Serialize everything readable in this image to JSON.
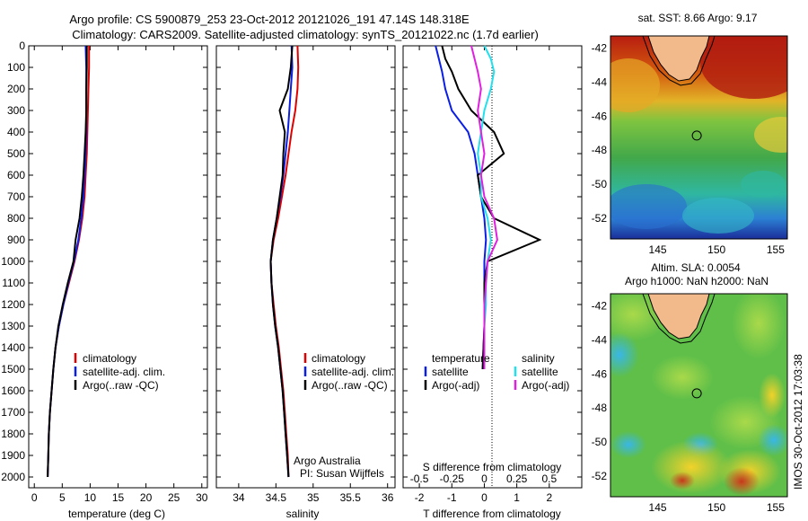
{
  "title": {
    "line1": "Argo profile: CS 5900879_253 23-Oct-2012 20121026_191 47.14S 148.318E",
    "line2": "Climatology: CARS2009. Satellite-adjusted climatology: synTS_20121022.nc (1.7d earlier)"
  },
  "colors": {
    "climatology": "#e00000",
    "satellite": "#0a1ee6",
    "argo": "#000000",
    "sal_satellite": "#22e0ee",
    "sal_argo": "#e020e0"
  },
  "chart_data": [
    {
      "type": "line",
      "name": "temperature-profile",
      "xlabel": "temperature (deg C)",
      "ylabel": "",
      "xlim": [
        -1,
        31
      ],
      "ylim": [
        2050,
        0
      ],
      "xticks": [
        "0",
        "5",
        "10",
        "15",
        "20",
        "25",
        "30"
      ],
      "xtick_values": [
        0,
        5,
        10,
        15,
        20,
        25,
        30
      ],
      "yticks": [
        "0",
        "100",
        "200",
        "300",
        "400",
        "500",
        "600",
        "700",
        "800",
        "900",
        "1000",
        "1100",
        "1200",
        "1300",
        "1400",
        "1500",
        "1600",
        "1700",
        "1800",
        "1900",
        "2000"
      ],
      "ytick_values": [
        0,
        100,
        200,
        300,
        400,
        500,
        600,
        700,
        800,
        900,
        1000,
        1100,
        1200,
        1300,
        1400,
        1500,
        1600,
        1700,
        1800,
        1900,
        2000
      ],
      "legend": [
        "climatology",
        "satellite-adj. clim.",
        "Argo(..raw -QC)"
      ],
      "legend_position": "lower-right",
      "series": [
        {
          "name": "climatology",
          "color": "#e00000",
          "x": [
            9.8,
            9.8,
            9.7,
            9.6,
            9.5,
            9.4,
            9.2,
            9.0,
            8.6,
            8.0,
            7.2,
            6.2,
            5.2,
            4.4,
            3.8,
            3.4,
            3.1,
            2.8,
            2.6,
            2.5,
            2.4
          ],
          "y": [
            0,
            100,
            200,
            300,
            400,
            500,
            600,
            700,
            800,
            900,
            1000,
            1100,
            1200,
            1300,
            1400,
            1500,
            1600,
            1700,
            1800,
            1900,
            2000
          ]
        },
        {
          "name": "satellite-adj. clim.",
          "color": "#0a1ee6",
          "x": [
            9.2,
            9.3,
            9.3,
            9.3,
            9.3,
            9.2,
            9.0,
            8.8,
            8.4,
            7.9,
            7.1,
            6.1,
            5.2,
            4.4,
            3.8,
            3.4,
            3.1,
            2.8,
            2.6,
            2.5,
            2.4
          ],
          "y": [
            0,
            100,
            200,
            300,
            400,
            500,
            600,
            700,
            800,
            900,
            1000,
            1100,
            1200,
            1300,
            1400,
            1500,
            1600,
            1700,
            1800,
            1900,
            2000
          ]
        },
        {
          "name": "Argo(..raw -QC)",
          "color": "#000000",
          "x": [
            9.4,
            9.4,
            9.3,
            9.3,
            9.2,
            9.0,
            8.8,
            8.5,
            8.1,
            7.4,
            7.0,
            6.0,
            5.1,
            4.3,
            3.8,
            3.4,
            3.1,
            2.8,
            2.6,
            2.5,
            2.4
          ],
          "y": [
            0,
            100,
            200,
            300,
            400,
            500,
            600,
            700,
            800,
            900,
            1000,
            1100,
            1200,
            1300,
            1400,
            1500,
            1600,
            1700,
            1800,
            1900,
            2000
          ]
        }
      ]
    },
    {
      "type": "line",
      "name": "salinity-profile",
      "xlabel": "salinity",
      "xlim": [
        33.7,
        36.1
      ],
      "ylim": [
        2050,
        0
      ],
      "xticks": [
        "34",
        "34.5",
        "35",
        "35.5",
        "36"
      ],
      "xtick_values": [
        34,
        34.5,
        35,
        35.5,
        36
      ],
      "legend": [
        "climatology",
        "satellite-adj. clim.",
        "Argo(..raw -QC)"
      ],
      "legend_position": "lower-right",
      "annotation": [
        "Argo Australia",
        "PI: Susan Wijffels"
      ],
      "series": [
        {
          "name": "climatology",
          "color": "#e00000",
          "x": [
            34.79,
            34.8,
            34.79,
            34.76,
            34.71,
            34.67,
            34.63,
            34.58,
            34.53,
            34.47,
            34.43,
            34.44,
            34.47,
            34.5,
            34.54,
            34.57,
            34.6,
            34.62,
            34.64,
            34.66,
            34.67
          ],
          "y": [
            0,
            100,
            200,
            300,
            400,
            500,
            600,
            700,
            800,
            900,
            1000,
            1100,
            1200,
            1300,
            1400,
            1500,
            1600,
            1700,
            1800,
            1900,
            2000
          ]
        },
        {
          "name": "satellite-adj. clim.",
          "color": "#0a1ee6",
          "x": [
            34.71,
            34.72,
            34.7,
            34.68,
            34.66,
            34.63,
            34.6,
            34.56,
            34.51,
            34.46,
            34.43,
            34.44,
            34.46,
            34.49,
            34.53,
            34.56,
            34.59,
            34.61,
            34.63,
            34.65,
            34.67
          ],
          "y": [
            0,
            100,
            200,
            300,
            400,
            500,
            600,
            700,
            800,
            900,
            1000,
            1100,
            1200,
            1300,
            1400,
            1500,
            1600,
            1700,
            1800,
            1900,
            2000
          ]
        },
        {
          "name": "Argo(..raw -QC)",
          "color": "#000000",
          "x": [
            34.72,
            34.7,
            34.66,
            34.55,
            34.62,
            34.6,
            34.59,
            34.55,
            34.51,
            34.46,
            34.43,
            34.44,
            34.46,
            34.49,
            34.53,
            34.56,
            34.59,
            34.61,
            34.63,
            34.65,
            34.67
          ],
          "y": [
            0,
            100,
            200,
            300,
            400,
            500,
            600,
            700,
            800,
            900,
            1000,
            1100,
            1200,
            1300,
            1400,
            1500,
            1600,
            1700,
            1800,
            1900,
            2000
          ]
        }
      ]
    },
    {
      "type": "line",
      "name": "difference-profile",
      "xlabel": "T difference from climatology",
      "xlabel_top": "S difference from climatology",
      "xlim": [
        -2.5,
        3
      ],
      "ylim": [
        2050,
        0
      ],
      "xticks": [
        "-2",
        "-1",
        "0",
        "1",
        "2"
      ],
      "xtick_values": [
        -2,
        -1,
        0,
        1,
        2
      ],
      "xticks_top": [
        "-0.5",
        "-0.25",
        "0",
        "0.25",
        "0.5"
      ],
      "xtick_top_values": [
        -0.5,
        -0.25,
        0,
        0.25,
        0.5
      ],
      "legend_headers": [
        "temperature",
        "salinity"
      ],
      "legend": [
        "satellite",
        "Argo(-adj)",
        "satellite",
        "Argo(-adj)"
      ],
      "legend_position": "lower",
      "series": [
        {
          "name": "temperature satellite",
          "color": "#0a1ee6",
          "x": [
            -1.5,
            -1.4,
            -1.3,
            -1.2,
            -1.0,
            -0.5,
            -0.3,
            -0.2,
            -0.1,
            0.0,
            0.05,
            0.0,
            0.0,
            0.0,
            0.0,
            -0.05
          ],
          "y": [
            0,
            60,
            120,
            200,
            300,
            400,
            500,
            600,
            700,
            800,
            900,
            1000,
            1100,
            1200,
            1300,
            1500
          ]
        },
        {
          "name": "temperature Argo(-adj)",
          "color": "#000000",
          "x": [
            -1.3,
            -1.2,
            -1.0,
            -0.8,
            -0.4,
            0.3,
            0.6,
            -0.2,
            -0.1,
            0.3,
            1.7,
            0.1,
            0.0,
            0.0,
            0.0,
            -0.05
          ],
          "y": [
            0,
            60,
            120,
            200,
            300,
            400,
            500,
            600,
            700,
            800,
            900,
            1000,
            1100,
            1200,
            1300,
            1500
          ]
        },
        {
          "name": "salinity satellite",
          "color": "#22e0ee",
          "x": [
            0.0,
            0.2,
            0.3,
            0.2,
            0.0,
            -0.1,
            -0.2,
            -0.1,
            -0.1,
            0.1,
            0.2,
            0.1,
            0.05,
            0.05,
            0.0,
            0.0
          ],
          "y": [
            0,
            60,
            120,
            200,
            300,
            400,
            500,
            600,
            700,
            800,
            900,
            1000,
            1100,
            1200,
            1300,
            1500
          ]
        },
        {
          "name": "salinity Argo(-adj)",
          "color": "#e020e0",
          "x": [
            -0.4,
            -0.3,
            -0.2,
            -0.1,
            -0.2,
            -0.1,
            0.0,
            -0.1,
            0.0,
            0.3,
            0.4,
            0.1,
            0.05,
            0.0,
            0.0,
            0.0
          ],
          "y": [
            0,
            60,
            120,
            200,
            300,
            400,
            500,
            600,
            700,
            800,
            900,
            1000,
            1100,
            1200,
            1300,
            1500
          ]
        }
      ]
    },
    {
      "type": "heatmap",
      "name": "sst-map",
      "title": "sat. SST: 8.66 Argo: 9.17",
      "xlim": [
        141,
        156
      ],
      "ylim": [
        -53.2,
        -41.3
      ],
      "xticks": [
        "145",
        "150",
        "155"
      ],
      "xtick_values": [
        145,
        150,
        155
      ],
      "yticks": [
        "-42",
        "-44",
        "-46",
        "-48",
        "-50",
        "-52"
      ],
      "ytick_values": [
        -42,
        -44,
        -46,
        -48,
        -50,
        -52
      ],
      "marker": {
        "lon": 148.318,
        "lat": -47.14
      }
    },
    {
      "type": "heatmap",
      "name": "sla-map",
      "title": "Altim. SLA: 0.0054",
      "subtitle": "Argo h1000: NaN h2000: NaN",
      "xlim": [
        141,
        156
      ],
      "ylim": [
        -53.2,
        -41.3
      ],
      "xticks": [
        "145",
        "150",
        "155"
      ],
      "xtick_values": [
        145,
        150,
        155
      ],
      "yticks": [
        "-42",
        "-44",
        "-46",
        "-48",
        "-50",
        "-52"
      ],
      "ytick_values": [
        -42,
        -44,
        -46,
        -48,
        -50,
        -52
      ],
      "marker": {
        "lon": 148.318,
        "lat": -47.14
      },
      "side_label": "IMOS 30-Oct-2012 17:03:38"
    }
  ]
}
